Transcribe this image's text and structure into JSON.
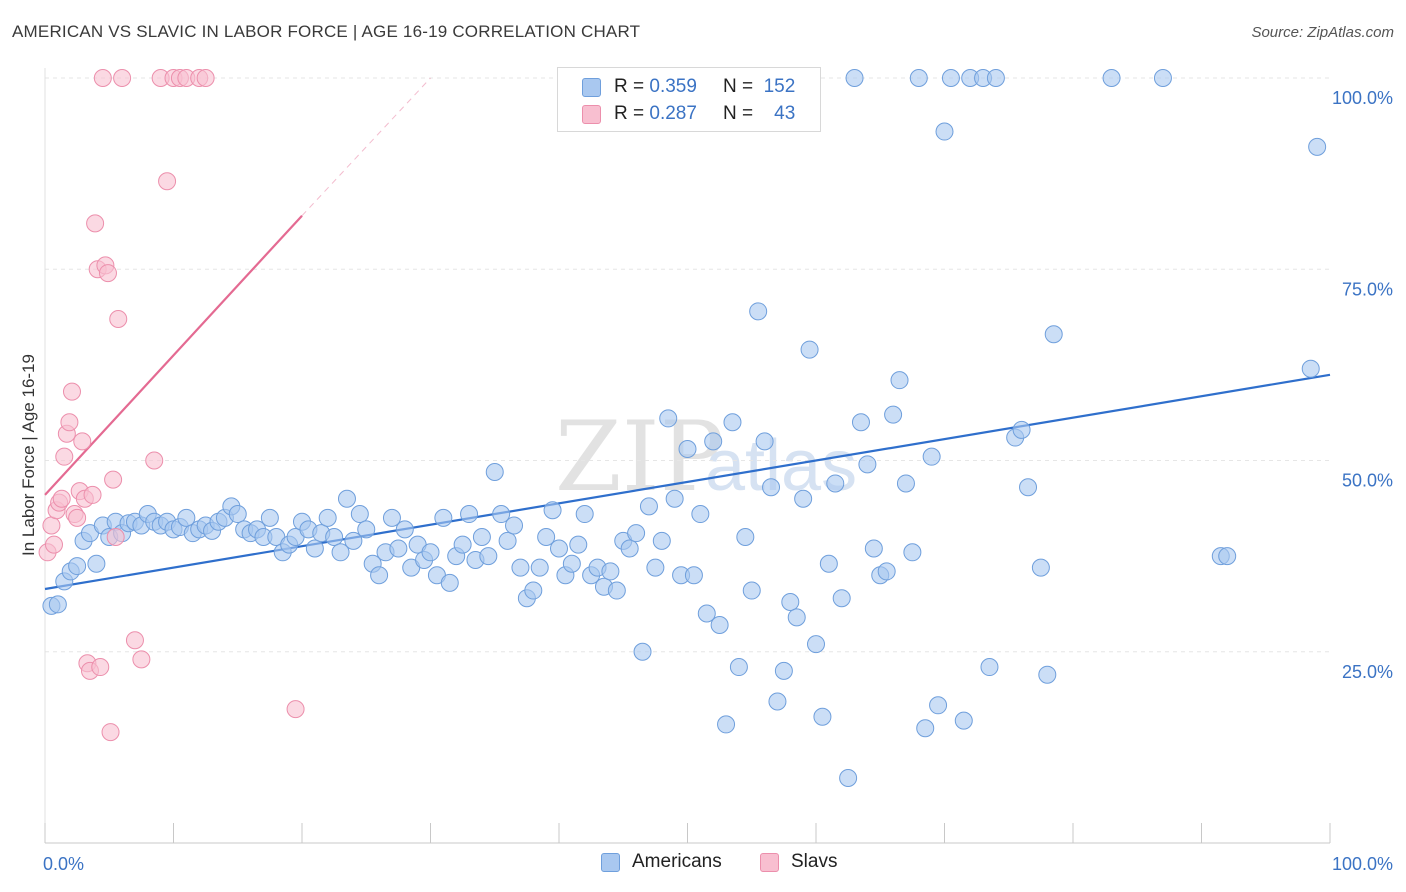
{
  "title": "AMERICAN VS SLAVIC IN LABOR FORCE | AGE 16-19 CORRELATION CHART",
  "source": "Source: ZipAtlas.com",
  "watermark": {
    "zip": "ZIP",
    "atlas": "atlas"
  },
  "colors": {
    "americans_fill": "#a9c8f0",
    "americans_stroke": "#6f9fdc",
    "americans_line": "#2f6fcc",
    "slavs_fill": "#f8bfd0",
    "slavs_stroke": "#ec8fac",
    "slavs_line": "#e46a92",
    "tick_text": "#3b73c4",
    "grid": "#e6e6e6"
  },
  "stats_legend": [
    {
      "series": "Americans",
      "r_label": "R =",
      "r_value": "0.359",
      "n_label": "N =",
      "n_value": "152"
    },
    {
      "series": "Slavs",
      "r_label": "R =",
      "r_value": "0.287",
      "n_label": "N =",
      "n_value": "43"
    }
  ],
  "chart_data": {
    "type": "scatter",
    "title": "AMERICAN VS SLAVIC IN LABOR FORCE | AGE 16-19 CORRELATION CHART",
    "xlabel": "",
    "ylabel": "In Labor Force | Age 16-19",
    "xlim": [
      0,
      100
    ],
    "ylim": [
      0,
      100
    ],
    "x_tick_labels": [
      "0.0%",
      "100.0%"
    ],
    "y_ticks": [
      25,
      50,
      75,
      100
    ],
    "y_tick_labels": [
      "25.0%",
      "50.0%",
      "75.0%",
      "100.0%"
    ],
    "grid": true,
    "legend": "bottom-center",
    "series": [
      {
        "name": "Americans",
        "trend": {
          "x": [
            0,
            100
          ],
          "y": [
            33.2,
            61.2
          ],
          "dashed_from": null
        },
        "points": [
          [
            0.5,
            31.0
          ],
          [
            1.0,
            31.2
          ],
          [
            1.5,
            34.2
          ],
          [
            2.0,
            35.5
          ],
          [
            2.5,
            36.2
          ],
          [
            3.0,
            39.5
          ],
          [
            3.5,
            40.5
          ],
          [
            4.0,
            36.5
          ],
          [
            4.5,
            41.5
          ],
          [
            5.0,
            40.0
          ],
          [
            5.5,
            42.0
          ],
          [
            6.0,
            40.5
          ],
          [
            6.5,
            41.8
          ],
          [
            7.0,
            42.0
          ],
          [
            7.5,
            41.5
          ],
          [
            8.0,
            43.0
          ],
          [
            8.5,
            42.0
          ],
          [
            9.0,
            41.5
          ],
          [
            9.5,
            42.0
          ],
          [
            10.0,
            41.0
          ],
          [
            10.5,
            41.3
          ],
          [
            11.0,
            42.5
          ],
          [
            11.5,
            40.5
          ],
          [
            12.0,
            41.0
          ],
          [
            12.5,
            41.5
          ],
          [
            13.0,
            40.8
          ],
          [
            13.5,
            42.0
          ],
          [
            14.0,
            42.5
          ],
          [
            14.5,
            44.0
          ],
          [
            15.0,
            43.0
          ],
          [
            15.5,
            41.0
          ],
          [
            16.0,
            40.5
          ],
          [
            16.5,
            41.0
          ],
          [
            17.0,
            40.0
          ],
          [
            17.5,
            42.5
          ],
          [
            18.0,
            40.0
          ],
          [
            18.5,
            38.0
          ],
          [
            19.0,
            39.0
          ],
          [
            19.5,
            40.0
          ],
          [
            20.0,
            42.0
          ],
          [
            20.5,
            41.0
          ],
          [
            21.0,
            38.5
          ],
          [
            21.5,
            40.5
          ],
          [
            22.0,
            42.5
          ],
          [
            22.5,
            40.0
          ],
          [
            23.0,
            38.0
          ],
          [
            23.5,
            45.0
          ],
          [
            24.0,
            39.5
          ],
          [
            24.5,
            43.0
          ],
          [
            25.0,
            41.0
          ],
          [
            25.5,
            36.5
          ],
          [
            26.0,
            35.0
          ],
          [
            26.5,
            38.0
          ],
          [
            27.0,
            42.5
          ],
          [
            27.5,
            38.5
          ],
          [
            28.0,
            41.0
          ],
          [
            28.5,
            36.0
          ],
          [
            29.0,
            39.0
          ],
          [
            29.5,
            37.0
          ],
          [
            30.0,
            38.0
          ],
          [
            30.5,
            35.0
          ],
          [
            31.0,
            42.5
          ],
          [
            31.5,
            34.0
          ],
          [
            32.0,
            37.5
          ],
          [
            32.5,
            39.0
          ],
          [
            33.0,
            43.0
          ],
          [
            33.5,
            37.0
          ],
          [
            34.0,
            40.0
          ],
          [
            34.5,
            37.5
          ],
          [
            35.0,
            48.5
          ],
          [
            35.5,
            43.0
          ],
          [
            36.0,
            39.5
          ],
          [
            36.5,
            41.5
          ],
          [
            37.0,
            36.0
          ],
          [
            37.5,
            32.0
          ],
          [
            38.0,
            33.0
          ],
          [
            38.5,
            36.0
          ],
          [
            39.0,
            40.0
          ],
          [
            39.5,
            43.5
          ],
          [
            40.0,
            38.5
          ],
          [
            40.5,
            35.0
          ],
          [
            41.0,
            36.5
          ],
          [
            41.5,
            39.0
          ],
          [
            42.0,
            43.0
          ],
          [
            42.5,
            35.0
          ],
          [
            43.0,
            36.0
          ],
          [
            43.5,
            33.5
          ],
          [
            44.0,
            35.5
          ],
          [
            44.5,
            33.0
          ],
          [
            45.0,
            39.5
          ],
          [
            45.5,
            38.5
          ],
          [
            46.0,
            40.5
          ],
          [
            46.5,
            25.0
          ],
          [
            47.0,
            44.0
          ],
          [
            47.5,
            36.0
          ],
          [
            48.0,
            39.5
          ],
          [
            48.5,
            55.5
          ],
          [
            49.0,
            45.0
          ],
          [
            49.5,
            35.0
          ],
          [
            50.0,
            51.5
          ],
          [
            50.5,
            35.0
          ],
          [
            51.0,
            43.0
          ],
          [
            51.5,
            30.0
          ],
          [
            52.0,
            52.5
          ],
          [
            52.5,
            28.5
          ],
          [
            53.0,
            15.5
          ],
          [
            53.5,
            55.0
          ],
          [
            54.0,
            23.0
          ],
          [
            54.5,
            40.0
          ],
          [
            55.0,
            33.0
          ],
          [
            55.5,
            69.5
          ],
          [
            56.0,
            52.5
          ],
          [
            56.5,
            46.5
          ],
          [
            57.0,
            18.5
          ],
          [
            57.5,
            22.5
          ],
          [
            58.0,
            31.5
          ],
          [
            58.5,
            29.5
          ],
          [
            59.0,
            45.0
          ],
          [
            59.5,
            64.5
          ],
          [
            60.0,
            26.0
          ],
          [
            60.5,
            16.5
          ],
          [
            61.0,
            36.5
          ],
          [
            61.5,
            47.0
          ],
          [
            62.0,
            32.0
          ],
          [
            62.5,
            8.5
          ],
          [
            63.0,
            100.0
          ],
          [
            63.5,
            55.0
          ],
          [
            64.0,
            49.5
          ],
          [
            64.5,
            38.5
          ],
          [
            65.0,
            35.0
          ],
          [
            65.5,
            35.5
          ],
          [
            66.0,
            56.0
          ],
          [
            66.5,
            60.5
          ],
          [
            67.0,
            47.0
          ],
          [
            67.5,
            38.0
          ],
          [
            68.0,
            100.0
          ],
          [
            68.5,
            15.0
          ],
          [
            69.0,
            50.5
          ],
          [
            69.5,
            18.0
          ],
          [
            70.0,
            93.0
          ],
          [
            70.5,
            100.0
          ],
          [
            71.5,
            16.0
          ],
          [
            72.0,
            100.0
          ],
          [
            73.0,
            100.0
          ],
          [
            73.5,
            23.0
          ],
          [
            74.0,
            100.0
          ],
          [
            75.5,
            53.0
          ],
          [
            76.0,
            54.0
          ],
          [
            76.5,
            46.5
          ],
          [
            77.5,
            36.0
          ],
          [
            78.0,
            22.0
          ],
          [
            78.5,
            66.5
          ],
          [
            83.0,
            100.0
          ],
          [
            87.0,
            100.0
          ],
          [
            91.5,
            37.5
          ],
          [
            92.0,
            37.5
          ],
          [
            98.5,
            62.0
          ],
          [
            99.0,
            91.0
          ]
        ]
      },
      {
        "name": "Slavs",
        "trend": {
          "x": [
            0,
            20,
            30
          ],
          "y": [
            45.5,
            82.0,
            100.0
          ],
          "dashed_from": 20
        },
        "points": [
          [
            0.2,
            38.0
          ],
          [
            0.5,
            41.5
          ],
          [
            0.7,
            39.0
          ],
          [
            0.9,
            43.5
          ],
          [
            1.1,
            44.5
          ],
          [
            1.3,
            45.0
          ],
          [
            1.5,
            50.5
          ],
          [
            1.7,
            53.5
          ],
          [
            1.9,
            55.0
          ],
          [
            2.1,
            59.0
          ],
          [
            2.3,
            43.0
          ],
          [
            2.5,
            42.5
          ],
          [
            2.7,
            46.0
          ],
          [
            2.9,
            52.5
          ],
          [
            3.1,
            45.0
          ],
          [
            3.3,
            23.5
          ],
          [
            3.5,
            22.5
          ],
          [
            3.7,
            45.5
          ],
          [
            3.9,
            81.0
          ],
          [
            4.1,
            75.0
          ],
          [
            4.3,
            23.0
          ],
          [
            4.5,
            100.0
          ],
          [
            4.7,
            75.5
          ],
          [
            4.9,
            74.5
          ],
          [
            5.1,
            14.5
          ],
          [
            5.3,
            47.5
          ],
          [
            5.5,
            40.0
          ],
          [
            5.7,
            68.5
          ],
          [
            6.0,
            100.0
          ],
          [
            7.0,
            26.5
          ],
          [
            7.5,
            24.0
          ],
          [
            8.5,
            50.0
          ],
          [
            9.0,
            100.0
          ],
          [
            9.5,
            86.5
          ],
          [
            10.0,
            100.0
          ],
          [
            10.5,
            100.0
          ],
          [
            11.0,
            100.0
          ],
          [
            12.0,
            100.0
          ],
          [
            12.5,
            100.0
          ],
          [
            19.5,
            17.5
          ]
        ]
      }
    ]
  },
  "bottom_legend": [
    {
      "label": "Americans"
    },
    {
      "label": "Slavs"
    }
  ]
}
